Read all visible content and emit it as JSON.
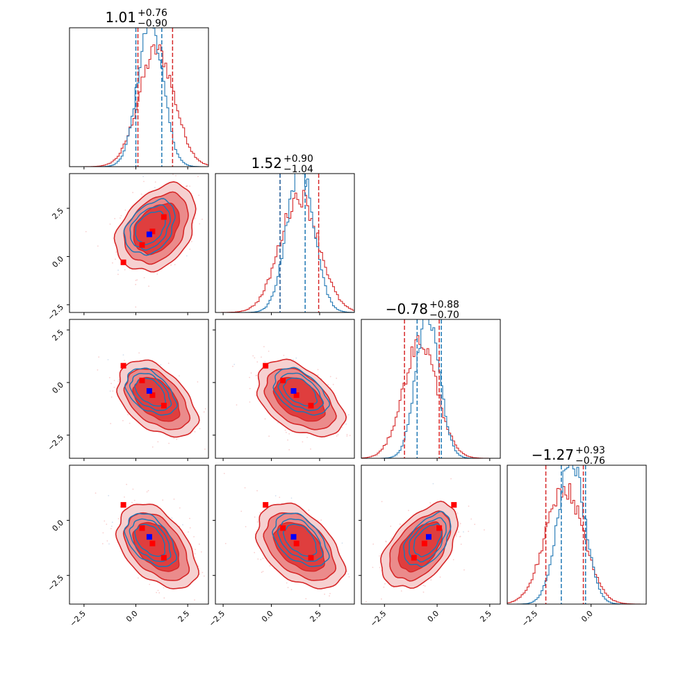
{
  "chart_data": {
    "type": "corner",
    "n_params": 4,
    "series": [
      {
        "name": "red samples",
        "color": "#d62728",
        "contour_fills": [
          "#f6d0d0",
          "#eb8b8b",
          "#df3e3e"
        ]
      },
      {
        "name": "blue samples",
        "color": "#1f77b4"
      }
    ],
    "titles": [
      {
        "median": "1.01",
        "plus": "+0.76",
        "minus": "−0.90"
      },
      {
        "median": "1.52",
        "plus": "+0.90",
        "minus": "−1.04"
      },
      {
        "median": "−0.78",
        "plus": "+0.88",
        "minus": "−0.70"
      },
      {
        "median": "−1.27",
        "plus": "+0.93",
        "minus": "−0.76"
      }
    ],
    "axis_ranges": [
      [
        -3.2,
        3.5
      ],
      [
        -2.9,
        4.3
      ],
      [
        -3.6,
        3.0
      ],
      [
        -3.8,
        2.5
      ]
    ],
    "ticks": [
      [
        "−2.5",
        "0.0",
        "2.5"
      ],
      [
        "−2.5",
        "0.0",
        "2.5"
      ],
      [
        "−2.5",
        "0.0",
        "2.5"
      ],
      [
        "−2.5",
        "0.0"
      ]
    ],
    "y_tick_labels": {
      "row1": [
        "2.5",
        "0.0",
        "−2.5"
      ],
      "row2": [
        "2.5",
        "0.0",
        "−2.5"
      ],
      "row3": [
        "0.0",
        "−2.5"
      ]
    },
    "dist": [
      {
        "red_mean": 1.0,
        "red_sd": 0.85,
        "blue_mean": 0.7,
        "blue_sd": 0.6
      },
      {
        "red_mean": 1.45,
        "red_sd": 1.0,
        "blue_mean": 1.5,
        "blue_sd": 0.7
      },
      {
        "red_mean": -0.8,
        "red_sd": 0.8,
        "blue_mean": -0.45,
        "blue_sd": 0.55
      },
      {
        "red_mean": -1.2,
        "red_sd": 0.85,
        "blue_mean": -0.9,
        "blue_sd": 0.6
      }
    ],
    "quantile_lines": [
      {
        "red": [
          0.1,
          1.77
        ],
        "blue": [
          0.0,
          1.25
        ]
      },
      {
        "red": [
          0.45,
          2.45
        ],
        "blue": [
          0.45,
          1.75
        ]
      },
      {
        "red": [
          -1.55,
          0.1
        ],
        "blue": [
          -0.95,
          0.2
        ]
      },
      {
        "red": [
          -2.05,
          -0.35
        ],
        "blue": [
          -1.35,
          -0.25
        ]
      }
    ],
    "correlations": {
      "1-0": 0.35,
      "2-0": -0.45,
      "2-1": -0.45,
      "3-0": -0.45,
      "3-1": -0.45,
      "3-2": 0.5
    },
    "markers": {
      "red": [
        [
          -0.6,
          -0.3,
          0.8,
          0.7
        ],
        [
          0.3,
          0.6,
          0.1,
          -0.35
        ],
        [
          0.8,
          1.3,
          -0.6,
          -1.05
        ],
        [
          1.35,
          2.05,
          -1.1,
          -1.7
        ]
      ],
      "blue": [
        0.65,
        1.15,
        -0.4,
        -0.75
      ]
    }
  }
}
